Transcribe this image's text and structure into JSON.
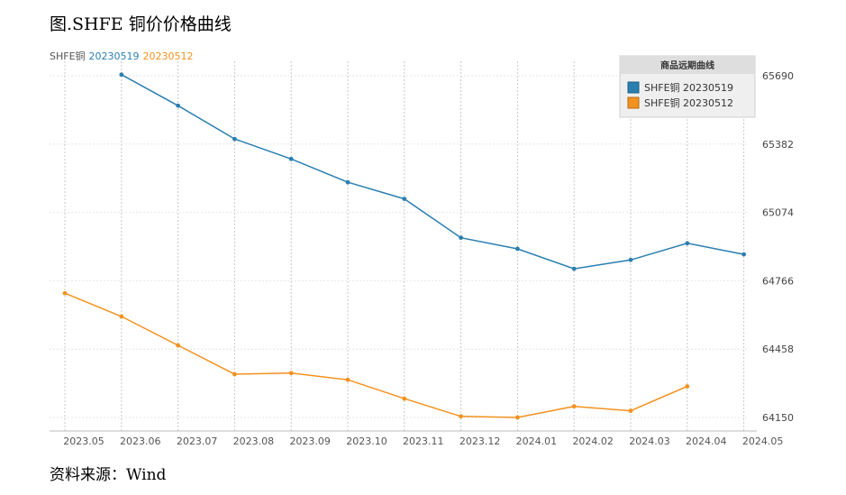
{
  "figure_title": "图.SHFE 铜价价格曲线",
  "source": "资料来源：Wind",
  "header": {
    "prefix": "SHFE铜",
    "series_a": "20230519",
    "series_b": "20230512"
  },
  "legend": {
    "title": "商品远期曲线",
    "items": [
      "SHFE铜 20230519",
      "SHFE铜 20230512"
    ]
  },
  "colors": {
    "series_a": "#2b7fb0",
    "series_b": "#f2921f",
    "grid": "#cccccc",
    "axis_text": "#666666"
  },
  "chart_data": {
    "type": "line",
    "x": [
      "2023.05",
      "2023.06",
      "2023.07",
      "2023.08",
      "2023.09",
      "2023.10",
      "2023.11",
      "2023.12",
      "2024.01",
      "2024.02",
      "2024.03",
      "2024.04",
      "2024.05"
    ],
    "x_ticks": [
      "2023.05",
      "2023.06",
      "2023.07",
      "2023.08",
      "2023.09",
      "2023.10",
      "2023.11",
      "2023.12",
      "2024.01",
      "2024.02",
      "2024.03",
      "2024.04",
      "2024.05"
    ],
    "y_ticks": [
      64150,
      64458,
      64766,
      65074,
      65382,
      65690
    ],
    "ylim": [
      64150,
      65690
    ],
    "y_axis_position": "right",
    "grid": true,
    "legend_position": "top-right",
    "series": [
      {
        "name": "SHFE铜 20230519",
        "color": "#2b7fb0",
        "values": [
          null,
          65695,
          65555,
          65405,
          65315,
          65210,
          65135,
          64960,
          64910,
          64820,
          64860,
          64935,
          64885
        ]
      },
      {
        "name": "SHFE铜 20230512",
        "color": "#f2921f",
        "values": [
          64710,
          64605,
          64475,
          64345,
          64350,
          64320,
          64235,
          64155,
          64150,
          64200,
          64180,
          64290,
          null
        ]
      }
    ]
  }
}
